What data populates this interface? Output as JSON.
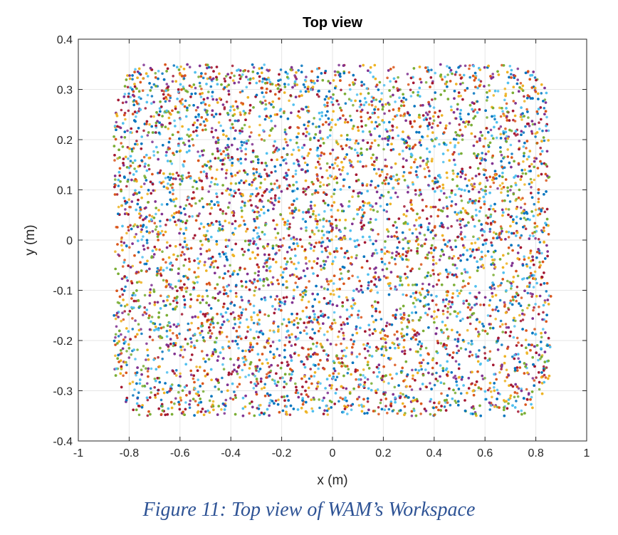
{
  "caption": "Figure 11: Top view of WAM’s Workspace",
  "chart_data": {
    "type": "scatter",
    "title": "Top view",
    "xlabel": "x (m)",
    "ylabel": "y (m)",
    "xlim": [
      -1,
      1
    ],
    "ylim": [
      -0.4,
      0.4
    ],
    "xticks": [
      "-1",
      "-0.8",
      "-0.6",
      "-0.4",
      "-0.2",
      "0",
      "0.2",
      "0.4",
      "0.6",
      "0.8",
      "1"
    ],
    "yticks": [
      "-0.4",
      "-0.3",
      "-0.2",
      "-0.1",
      "0",
      "0.1",
      "0.2",
      "0.3",
      "0.4"
    ],
    "grid": true,
    "point_region": {
      "x_range": [
        -0.86,
        0.86
      ],
      "y_range": [
        -0.35,
        0.35
      ],
      "corner_rounding": 0.12,
      "approx_points": 9000
    },
    "colors": [
      "#0072bd",
      "#d95319",
      "#edb120",
      "#7e2f8e",
      "#77ac30",
      "#4dbeee",
      "#a2142f"
    ]
  }
}
